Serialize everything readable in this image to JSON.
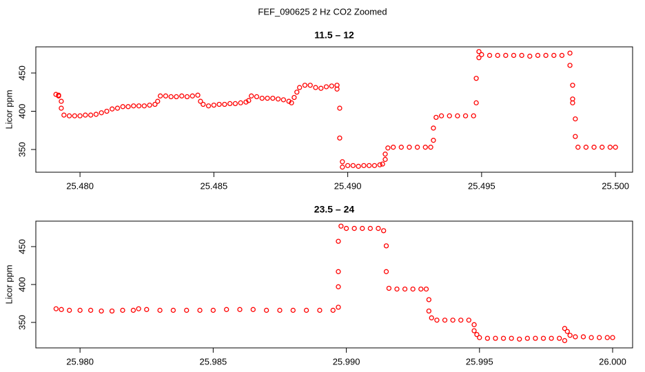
{
  "title": "FEF_090625  2 Hz CO2 Zoomed",
  "chart_data": [
    {
      "type": "scatter",
      "title": "11.5 – 12",
      "ylabel": "Licor ppm",
      "color": "#ff0000",
      "x": [
        25.4791,
        25.4792,
        25.4792,
        25.4793,
        25.4793,
        25.4794,
        25.4796,
        25.4798,
        25.48,
        25.4802,
        25.4804,
        25.4806,
        25.4808,
        25.481,
        25.4812,
        25.4814,
        25.4816,
        25.4818,
        25.482,
        25.4822,
        25.4824,
        25.4826,
        25.4828,
        25.4829,
        25.483,
        25.4832,
        25.4834,
        25.4836,
        25.4838,
        25.484,
        25.4842,
        25.4844,
        25.4845,
        25.4846,
        25.4848,
        25.485,
        25.4852,
        25.4854,
        25.4856,
        25.4858,
        25.486,
        25.4862,
        25.4863,
        25.4864,
        25.4866,
        25.4868,
        25.487,
        25.4872,
        25.4874,
        25.4876,
        25.4878,
        25.4879,
        25.488,
        25.4881,
        25.4882,
        25.4884,
        25.4886,
        25.4888,
        25.489,
        25.4892,
        25.4894,
        25.4896,
        25.4896,
        25.4897,
        25.4897,
        25.4898,
        25.4898,
        25.49,
        25.4902,
        25.4904,
        25.4906,
        25.4908,
        25.491,
        25.4912,
        25.4913,
        25.4914,
        25.4914,
        25.4915,
        25.4917,
        25.492,
        25.4923,
        25.4926,
        25.4929,
        25.4931,
        25.4932,
        25.4932,
        25.4933,
        25.4935,
        25.4938,
        25.4941,
        25.4944,
        25.4947,
        25.4948,
        25.4948,
        25.4949,
        25.4949,
        25.495,
        25.4953,
        25.4956,
        25.4959,
        25.4962,
        25.4965,
        25.4968,
        25.4971,
        25.4974,
        25.4977,
        25.498,
        25.4983,
        25.4983,
        25.4984,
        25.4984,
        25.4984,
        25.4985,
        25.4985,
        25.4986,
        25.4989,
        25.4992,
        25.4995,
        25.4998,
        25.5
      ],
      "values": [
        422,
        421,
        420,
        413,
        404,
        395,
        394,
        394,
        394,
        395,
        395,
        396,
        398,
        400,
        403,
        404,
        406,
        406,
        407,
        407,
        407,
        408,
        409,
        413,
        420,
        420,
        419,
        419,
        420,
        419,
        420,
        421,
        413,
        409,
        407,
        408,
        409,
        409,
        410,
        410,
        411,
        412,
        414,
        420,
        419,
        417,
        417,
        417,
        416,
        415,
        413,
        411,
        418,
        425,
        431,
        434,
        434,
        431,
        430,
        432,
        433,
        434,
        429,
        404,
        365,
        334,
        327,
        329,
        329,
        328,
        329,
        329,
        329,
        330,
        331,
        337,
        344,
        352,
        353,
        353,
        353,
        353,
        353,
        353,
        362,
        378,
        392,
        394,
        394,
        394,
        394,
        394,
        411,
        443,
        470,
        478,
        474,
        473,
        473,
        473,
        473,
        473,
        472,
        473,
        473,
        473,
        473,
        476,
        460,
        434,
        416,
        411,
        390,
        367,
        353,
        353,
        353,
        353,
        353,
        353
      ],
      "xlim": [
        25.47835,
        25.50064
      ],
      "ylim": [
        320.3,
        484.2
      ],
      "xticks": [
        {
          "value": 25.48,
          "label": "25.480"
        },
        {
          "value": 25.485,
          "label": "25.485"
        },
        {
          "value": 25.49,
          "label": "25.490"
        },
        {
          "value": 25.495,
          "label": "25.495"
        },
        {
          "value": 25.5,
          "label": "25.500"
        }
      ],
      "yticks": [
        350,
        400,
        450
      ]
    },
    {
      "type": "scatter",
      "title": "23.5 – 24",
      "ylabel": "Licor ppm",
      "color": "#ff0000",
      "x": [
        25.9791,
        25.9793,
        25.9796,
        25.98,
        25.9804,
        25.9808,
        25.9812,
        25.9816,
        25.982,
        25.9822,
        25.9825,
        25.983,
        25.9835,
        25.984,
        25.9845,
        25.985,
        25.9855,
        25.986,
        25.9865,
        25.987,
        25.9875,
        25.988,
        25.9885,
        25.989,
        25.9895,
        25.9897,
        25.9897,
        25.9897,
        25.9897,
        25.9898,
        25.99,
        25.9903,
        25.9906,
        25.9909,
        25.9912,
        25.9914,
        25.9915,
        25.9915,
        25.9916,
        25.9919,
        25.9922,
        25.9925,
        25.9928,
        25.993,
        25.9931,
        25.9931,
        25.9932,
        25.9934,
        25.9937,
        25.994,
        25.9943,
        25.9946,
        25.9948,
        25.9948,
        25.9949,
        25.995,
        25.9953,
        25.9956,
        25.9959,
        25.9962,
        25.9965,
        25.9968,
        25.9971,
        25.9974,
        25.9977,
        25.998,
        25.9982,
        25.9982,
        25.9983,
        25.9984,
        25.9986,
        25.9989,
        25.9992,
        25.9995,
        25.9998,
        26.0
      ],
      "values": [
        368,
        367,
        366,
        366,
        366,
        365,
        365,
        366,
        366,
        368,
        367,
        366,
        366,
        366,
        366,
        366,
        367,
        367,
        367,
        366,
        366,
        366,
        366,
        366,
        366,
        370,
        397,
        417,
        457,
        477,
        474,
        474,
        474,
        474,
        474,
        471,
        451,
        417,
        395,
        394,
        394,
        394,
        394,
        394,
        380,
        365,
        356,
        353,
        353,
        353,
        353,
        353,
        347,
        339,
        334,
        330,
        329,
        329,
        329,
        329,
        328,
        329,
        329,
        329,
        329,
        329,
        326,
        342,
        338,
        333,
        331,
        331,
        330,
        330,
        330,
        330
      ],
      "xlim": [
        25.97834,
        26.00075
      ],
      "ylim": [
        316.4,
        483.6
      ],
      "xticks": [
        {
          "value": 25.98,
          "label": "25.980"
        },
        {
          "value": 25.985,
          "label": "25.985"
        },
        {
          "value": 25.99,
          "label": "25.990"
        },
        {
          "value": 25.995,
          "label": "25.995"
        },
        {
          "value": 26.0,
          "label": "26.000"
        }
      ],
      "yticks": [
        350,
        400,
        450
      ]
    }
  ]
}
